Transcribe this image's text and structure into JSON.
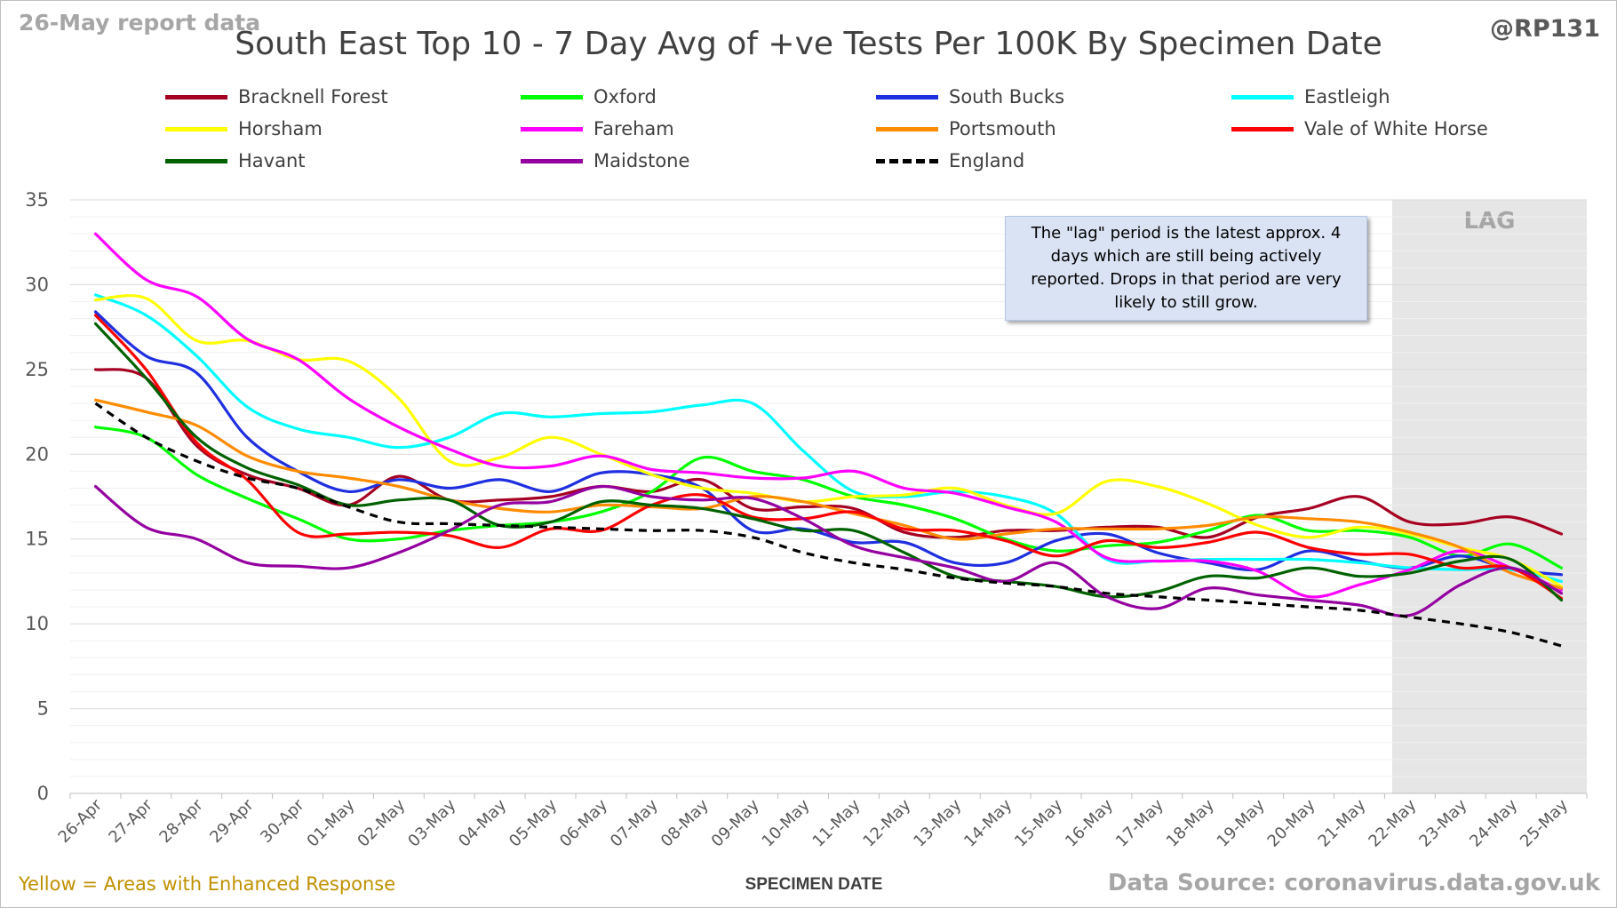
{
  "header": {
    "report_date": "26-May report data",
    "handle": "@RP131"
  },
  "footer": {
    "note": "Yellow = Areas with Enhanced Response",
    "source": "Data Source: coronavirus.data.gov.uk"
  },
  "annotation": "The \"lag\" period is the latest approx. 4 days which are still being actively reported.  Drops in that period are very likely to still grow.",
  "chart_data": {
    "type": "line",
    "title": "South East Top 10 - 7 Day Avg of +ve Tests Per 100K By Specimen Date",
    "xlabel": "SPECIMEN DATE",
    "ylabel": "",
    "ylim": [
      0,
      35
    ],
    "yticks": [
      0,
      5,
      10,
      15,
      20,
      25,
      30,
      35
    ],
    "grid": true,
    "legend_position": "top",
    "lag_label": "LAG",
    "lag_start": "22-May",
    "x": [
      "26-Apr",
      "27-Apr",
      "28-Apr",
      "29-Apr",
      "30-Apr",
      "01-May",
      "02-May",
      "03-May",
      "04-May",
      "05-May",
      "06-May",
      "07-May",
      "08-May",
      "09-May",
      "10-May",
      "11-May",
      "12-May",
      "13-May",
      "14-May",
      "15-May",
      "16-May",
      "17-May",
      "18-May",
      "19-May",
      "20-May",
      "21-May",
      "22-May",
      "23-May",
      "24-May",
      "25-May"
    ],
    "series": [
      {
        "name": "Bracknell Forest",
        "color": "#a50021",
        "dash": false,
        "values": [
          25.0,
          24.5,
          20.5,
          18.8,
          18.0,
          17.0,
          18.7,
          17.3,
          17.3,
          17.5,
          18.1,
          17.8,
          18.5,
          16.8,
          16.9,
          16.8,
          15.4,
          15.1,
          15.5,
          15.5,
          15.7,
          15.7,
          15.1,
          16.3,
          16.8,
          17.5,
          16.0,
          15.9,
          16.3,
          15.3
        ]
      },
      {
        "name": "Oxford",
        "color": "#00ff00",
        "dash": false,
        "values": [
          21.6,
          21.0,
          18.8,
          17.4,
          16.2,
          15.0,
          15.0,
          15.5,
          15.8,
          16.0,
          16.6,
          17.8,
          19.8,
          19.0,
          18.5,
          17.5,
          17.0,
          16.2,
          15.0,
          14.3,
          14.6,
          14.8,
          15.5,
          16.4,
          15.5,
          15.5,
          15.1,
          14.0,
          14.7,
          13.3
        ]
      },
      {
        "name": "South Bucks",
        "color": "#1f2fe0",
        "dash": false,
        "values": [
          28.4,
          25.8,
          24.8,
          21.0,
          19.0,
          17.8,
          18.5,
          18.0,
          18.5,
          17.8,
          18.9,
          18.8,
          18.0,
          15.5,
          15.6,
          14.8,
          14.8,
          13.6,
          13.6,
          14.9,
          15.3,
          14.2,
          13.6,
          13.2,
          14.3,
          13.7,
          13.3,
          14.0,
          13.2,
          12.9
        ]
      },
      {
        "name": "Eastleigh",
        "color": "#00ffff",
        "dash": false,
        "values": [
          29.4,
          28.2,
          25.8,
          22.8,
          21.5,
          21.0,
          20.4,
          21.0,
          22.4,
          22.2,
          22.4,
          22.5,
          22.9,
          23.0,
          20.2,
          17.8,
          17.5,
          17.8,
          17.5,
          16.5,
          13.8,
          13.7,
          13.8,
          13.8,
          13.8,
          13.6,
          13.3,
          13.2,
          13.2,
          12.5
        ]
      },
      {
        "name": "Horsham",
        "color": "#ffff00",
        "dash": false,
        "values": [
          29.1,
          29.2,
          26.7,
          26.7,
          25.6,
          25.5,
          23.3,
          19.6,
          19.8,
          21.0,
          20.0,
          18.8,
          18.0,
          17.7,
          17.2,
          17.5,
          17.6,
          18.0,
          17.0,
          16.5,
          18.4,
          18.1,
          17.1,
          15.8,
          15.1,
          15.7,
          15.3,
          14.5,
          13.8,
          12.2
        ]
      },
      {
        "name": "Fareham",
        "color": "#ff00ff",
        "dash": false,
        "values": [
          33.0,
          30.3,
          29.3,
          26.8,
          25.6,
          23.3,
          21.6,
          20.3,
          19.3,
          19.3,
          19.9,
          19.1,
          18.9,
          18.6,
          18.6,
          19.0,
          18.0,
          17.7,
          16.9,
          16.0,
          13.9,
          13.7,
          13.7,
          13.1,
          11.6,
          12.3,
          13.2,
          14.3,
          13.3,
          12.0
        ]
      },
      {
        "name": "Portsmouth",
        "color": "#ff8c00",
        "dash": false,
        "values": [
          23.2,
          22.5,
          21.7,
          19.9,
          19.0,
          18.6,
          18.1,
          17.3,
          16.8,
          16.6,
          17.0,
          16.9,
          16.8,
          17.5,
          17.2,
          16.5,
          15.8,
          15.0,
          15.3,
          15.6,
          15.6,
          15.6,
          15.8,
          16.3,
          16.2,
          16.0,
          15.4,
          14.5,
          13.0,
          12.1
        ]
      },
      {
        "name": "Vale of White Horse",
        "color": "#ff0000",
        "dash": false,
        "values": [
          28.2,
          25.0,
          20.7,
          18.5,
          15.4,
          15.3,
          15.4,
          15.2,
          14.5,
          15.6,
          15.5,
          17.0,
          17.6,
          16.3,
          16.2,
          16.6,
          15.6,
          15.5,
          14.9,
          14.0,
          14.9,
          14.5,
          14.8,
          15.4,
          14.5,
          14.1,
          14.1,
          13.3,
          13.3,
          11.5
        ]
      },
      {
        "name": "Havant",
        "color": "#006100",
        "dash": false,
        "values": [
          27.7,
          24.5,
          21.0,
          19.2,
          18.2,
          17.0,
          17.3,
          17.3,
          15.8,
          16.0,
          17.2,
          17.0,
          16.8,
          16.2,
          15.5,
          15.5,
          14.2,
          12.8,
          12.5,
          12.2,
          11.6,
          11.9,
          12.8,
          12.7,
          13.3,
          12.8,
          13.0,
          13.7,
          13.8,
          11.4
        ]
      },
      {
        "name": "Maidstone",
        "color": "#9400a0",
        "dash": false,
        "values": [
          18.1,
          15.7,
          15.0,
          13.6,
          13.4,
          13.3,
          14.2,
          15.5,
          17.0,
          17.2,
          18.1,
          17.5,
          17.3,
          17.4,
          16.2,
          14.6,
          13.9,
          13.3,
          12.5,
          13.6,
          11.6,
          10.9,
          12.1,
          11.7,
          11.4,
          11.1,
          10.5,
          12.3,
          13.3,
          11.8
        ]
      },
      {
        "name": "England",
        "color": "#000000",
        "dash": true,
        "values": [
          23.0,
          21.0,
          19.6,
          18.6,
          18.0,
          16.9,
          16.0,
          15.9,
          15.8,
          15.7,
          15.6,
          15.5,
          15.5,
          15.1,
          14.2,
          13.6,
          13.2,
          12.7,
          12.4,
          12.2,
          11.8,
          11.6,
          11.4,
          11.2,
          11.0,
          10.8,
          10.4,
          10.0,
          9.5,
          8.7
        ]
      }
    ]
  }
}
